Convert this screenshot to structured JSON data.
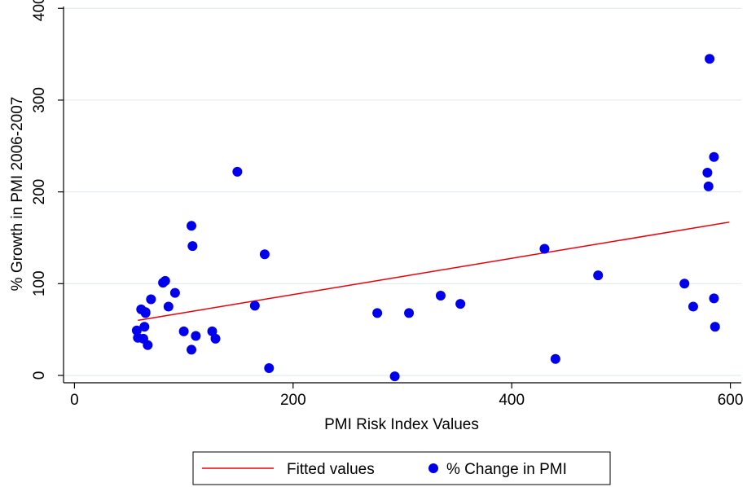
{
  "chart_data": {
    "type": "scatter",
    "xlabel": "PMI Risk Index Values",
    "ylabel": "% Growth in PMI 2006-2007",
    "xlim": [
      -10,
      610
    ],
    "ylim": [
      -8,
      402
    ],
    "xticks": [
      0,
      200,
      400,
      600
    ],
    "yticks": [
      0,
      100,
      200,
      300,
      400
    ],
    "x_tick_labels": [
      "0",
      "200",
      "400",
      "600"
    ],
    "y_tick_labels": [
      "0",
      "100",
      "200",
      "300",
      "400"
    ],
    "grid": "horizontal",
    "legend_position": "bottom",
    "colors": {
      "points": "#0000ee",
      "fit": "#e8000b",
      "grid": "#dde7ee"
    },
    "series": [
      {
        "name": "Fitted values",
        "kind": "line",
        "x": [
          58,
          599
        ],
        "y": [
          60,
          167
        ]
      },
      {
        "name": "% Change in PMI",
        "kind": "scatter",
        "x": [
          57,
          58,
          61,
          63,
          64,
          65,
          65,
          67,
          70,
          81,
          83,
          86,
          92,
          100,
          107,
          107,
          108,
          111,
          126,
          129,
          149,
          165,
          174,
          178,
          277,
          293,
          306,
          335,
          353,
          430,
          440,
          479,
          558,
          566,
          579,
          580,
          581,
          585,
          585,
          586
        ],
        "y": [
          49,
          41,
          72,
          40,
          53,
          68,
          69,
          33,
          83,
          101,
          103,
          75,
          90,
          48,
          163,
          28,
          141,
          43,
          48,
          40,
          222,
          76,
          132,
          8,
          68,
          -1,
          68,
          87,
          78,
          138,
          18,
          109,
          100,
          75,
          221,
          206,
          345,
          238,
          84,
          53
        ]
      }
    ]
  }
}
